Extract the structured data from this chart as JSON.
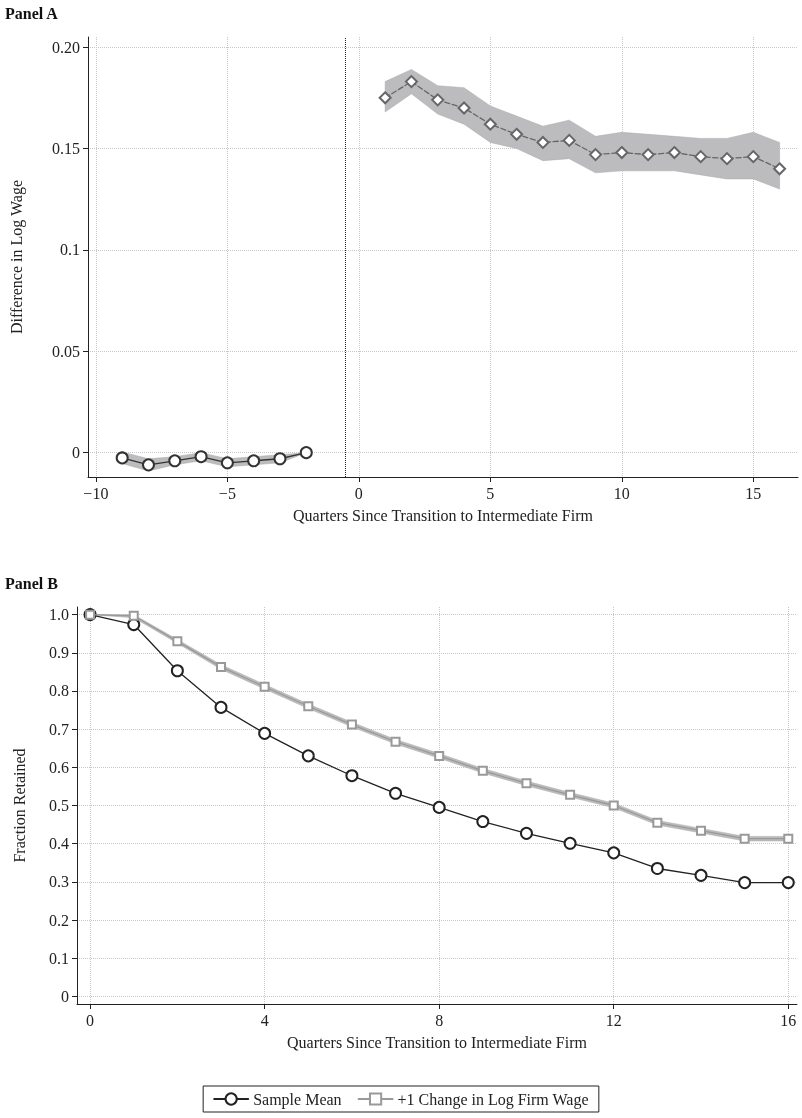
{
  "chart_data": [
    {
      "type": "line",
      "title": "Panel A",
      "xlabel": "Quarters Since Transition to Intermediate Firm",
      "ylabel": "Difference in Log Wage",
      "xlim": [
        -10.3,
        16.7
      ],
      "ylim": [
        -0.012,
        0.205
      ],
      "xticks": [
        {
          "value": -10,
          "label": "−10"
        },
        {
          "value": -5,
          "label": "−5"
        },
        0,
        5,
        10,
        15
      ],
      "yticks": [
        0,
        0.05,
        0.1,
        0.15,
        {
          "value": 0.2,
          "label": "0.20"
        }
      ],
      "grid": true,
      "legend": false,
      "ref_lines": [
        {
          "axis": "x",
          "value": -0.5,
          "label": null,
          "color": "#222222",
          "line_style": "dotted"
        }
      ],
      "series": [
        {
          "color": "#333333",
          "marker": "circle",
          "line_style": "solid",
          "x": [
            -9,
            -8,
            -7,
            -6,
            -5,
            -4,
            -3,
            -2
          ],
          "values": [
            -0.0026,
            -0.006,
            -0.004,
            -0.002,
            -0.005,
            -0.004,
            -0.003,
            0
          ],
          "lower": [
            -0.0054,
            -0.009,
            -0.006,
            -0.004,
            -0.007,
            -0.006,
            -0.005,
            0
          ],
          "upper": [
            0.0003,
            -0.003,
            -0.002,
            0,
            -0.003,
            -0.002,
            -0.001,
            0
          ]
        },
        {
          "color": "#666666",
          "marker": "diamond",
          "line_style": "dashed",
          "x": [
            1,
            2,
            3,
            4,
            5,
            6,
            7,
            8,
            9,
            10,
            11,
            12,
            13,
            14,
            15,
            16
          ],
          "values": [
            0.175,
            0.183,
            0.174,
            0.17,
            0.162,
            0.157,
            0.153,
            0.154,
            0.147,
            0.148,
            0.147,
            0.148,
            0.146,
            0.145,
            0.146,
            0.14
          ],
          "lower": [
            0.168,
            0.177,
            0.167,
            0.162,
            0.153,
            0.15,
            0.144,
            0.145,
            0.138,
            0.139,
            0.139,
            0.139,
            0.137,
            0.135,
            0.135,
            0.13
          ],
          "upper": [
            0.183,
            0.189,
            0.181,
            0.18,
            0.171,
            0.166,
            0.161,
            0.164,
            0.156,
            0.158,
            0.157,
            0.156,
            0.155,
            0.155,
            0.158,
            0.153
          ]
        }
      ]
    },
    {
      "type": "line",
      "title": "Panel B",
      "xlabel": "Quarters Since Transition to Intermediate Firm",
      "ylabel": "Fraction Retained",
      "xlim": [
        -0.3,
        16.2
      ],
      "ylim": [
        -0.02,
        1.02
      ],
      "xticks": [
        0,
        4,
        8,
        12,
        16
      ],
      "yticks": [
        0,
        0.1,
        0.2,
        0.3,
        0.4,
        0.5,
        0.6,
        0.7,
        0.8,
        0.9,
        {
          "value": 1,
          "label": "1.0"
        }
      ],
      "grid": true,
      "legend": "bottom",
      "series": [
        {
          "name": "Sample Mean",
          "color": "#222222",
          "marker": "circle",
          "line_style": "solid",
          "x": [
            0,
            1,
            2,
            3,
            4,
            5,
            6,
            7,
            8,
            9,
            10,
            11,
            12,
            13,
            14,
            15,
            16
          ],
          "values": [
            1,
            0.974,
            0.853,
            0.757,
            0.689,
            0.63,
            0.578,
            0.532,
            0.495,
            0.458,
            0.427,
            0.401,
            0.376,
            0.335,
            0.317,
            0.298,
            0.298
          ]
        },
        {
          "name": "+1 Change in Log Firm Wage",
          "color": "#999999",
          "marker": "square",
          "line_style": "solid",
          "x": [
            0,
            1,
            2,
            3,
            4,
            5,
            6,
            7,
            8,
            9,
            10,
            11,
            12,
            13,
            14,
            15,
            16
          ],
          "values": [
            1,
            0.997,
            0.93,
            0.863,
            0.811,
            0.76,
            0.712,
            0.667,
            0.63,
            0.591,
            0.558,
            0.528,
            0.5,
            0.455,
            0.434,
            0.413,
            0.413
          ],
          "lower": [
            1,
            0.992,
            0.925,
            0.857,
            0.805,
            0.754,
            0.706,
            0.661,
            0.624,
            0.585,
            0.552,
            0.522,
            0.494,
            0.449,
            0.428,
            0.407,
            0.407
          ],
          "upper": [
            1,
            1,
            0.935,
            0.869,
            0.817,
            0.766,
            0.718,
            0.673,
            0.636,
            0.597,
            0.564,
            0.534,
            0.506,
            0.461,
            0.44,
            0.419,
            0.419
          ]
        }
      ]
    }
  ]
}
